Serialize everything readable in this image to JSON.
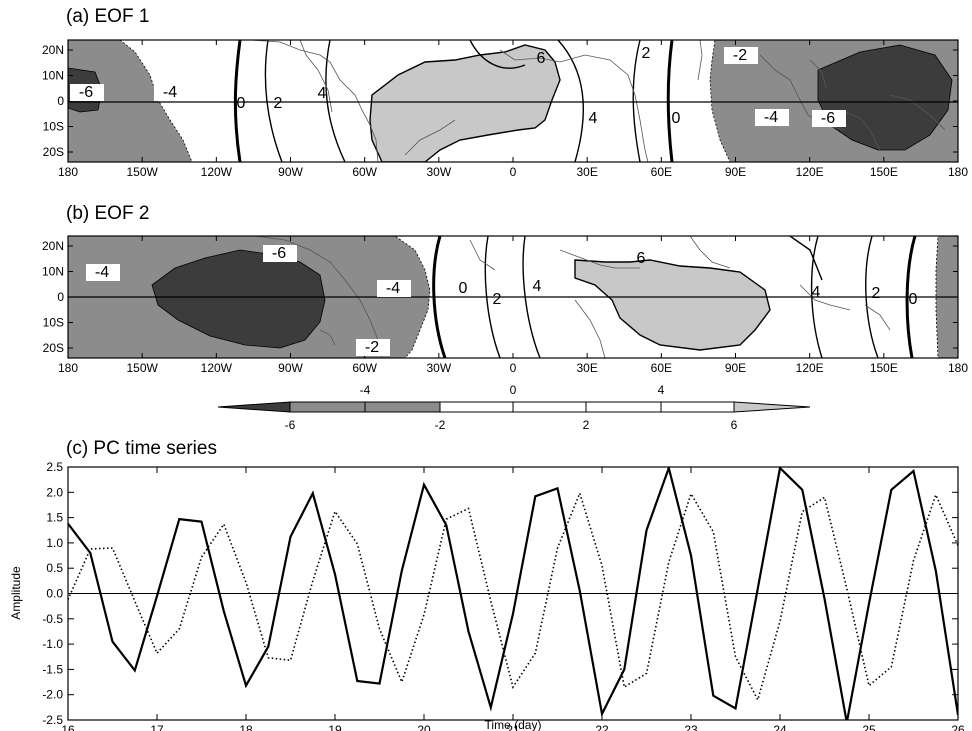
{
  "colors": {
    "pos_fill": "#c8c8c8",
    "neg_fill": "#8c8c8c",
    "neg_strong_fill": "#3c3c3c",
    "land_line": "#555555",
    "frame": "#000000"
  },
  "map_axes": {
    "lon_ticks": [
      "180",
      "150W",
      "120W",
      "90W",
      "60W",
      "30W",
      "0",
      "30E",
      "60E",
      "90E",
      "120E",
      "150E",
      "180"
    ],
    "lat_ticks": [
      "20N",
      "10N",
      "0",
      "10S",
      "20S"
    ]
  },
  "panels": [
    {
      "title": "(a) EOF 1",
      "contour_labels": [
        "-6",
        "-4",
        "0",
        "2",
        "4",
        "6",
        "4",
        "2",
        "0",
        "-2",
        "-4",
        "-6"
      ]
    },
    {
      "title": "(b) EOF 2",
      "contour_labels": [
        "-4",
        "-6",
        "-4",
        "-2",
        "0",
        "2",
        "4",
        "6",
        "4",
        "2",
        "0"
      ]
    }
  ],
  "colorbar": {
    "top_labels": [
      "-4",
      "0",
      "4"
    ],
    "bottom_labels": [
      "-6",
      "-2",
      "2",
      "6"
    ]
  },
  "chart_data": {
    "type": "line",
    "title": "(c) PC time series",
    "xlabel": "Time (day)",
    "ylabel": "Amplitude",
    "xlim": [
      16,
      26
    ],
    "ylim": [
      -2.5,
      2.5
    ],
    "x_ticks": [
      "16",
      "17",
      "18",
      "19",
      "20",
      "21",
      "22",
      "23",
      "24",
      "25",
      "26"
    ],
    "y_ticks": [
      "2.5",
      "2.0",
      "1.5",
      "1.0",
      "0.5",
      "0.0",
      "-0.5",
      "-1.0",
      "-1.5",
      "-2.0",
      "-2.5"
    ],
    "series": [
      {
        "style": "solid",
        "x": [
          16.0,
          16.25,
          16.5,
          16.75,
          17.0,
          17.25,
          17.5,
          17.75,
          18.0,
          18.25,
          18.5,
          18.75,
          19.0,
          19.25,
          19.5,
          19.75,
          20.0,
          20.25,
          20.5,
          20.75,
          21.0,
          21.25,
          21.5,
          21.75,
          22.0,
          22.25,
          22.5,
          22.75,
          23.0,
          23.25,
          23.5,
          23.75,
          24.0,
          24.25,
          24.5,
          24.75,
          25.0,
          25.25,
          25.5,
          25.75,
          26.0
        ],
        "y": [
          1.38,
          0.8,
          -0.95,
          -1.52,
          -0.05,
          1.47,
          1.42,
          -0.35,
          -1.82,
          -1.05,
          1.12,
          1.98,
          0.38,
          -1.73,
          -1.78,
          0.45,
          2.15,
          1.35,
          -0.75,
          -2.25,
          -0.4,
          1.92,
          2.08,
          0.05,
          -2.38,
          -1.5,
          1.25,
          2.48,
          0.75,
          -2.02,
          -2.27,
          0.1,
          2.48,
          2.05,
          -0.1,
          -2.55,
          -0.2,
          2.05,
          2.42,
          0.45,
          -2.4
        ]
      },
      {
        "style": "dotted",
        "x": [
          16.0,
          16.25,
          16.5,
          16.75,
          17.0,
          17.25,
          17.5,
          17.75,
          18.0,
          18.25,
          18.5,
          18.75,
          19.0,
          19.25,
          19.5,
          19.75,
          20.0,
          20.25,
          20.5,
          20.75,
          21.0,
          21.25,
          21.5,
          21.75,
          22.0,
          22.25,
          22.5,
          22.75,
          23.0,
          23.25,
          23.5,
          23.75,
          24.0,
          24.25,
          24.5,
          24.75,
          25.0,
          25.25,
          25.5,
          25.75,
          26.0
        ],
        "y": [
          -0.12,
          0.88,
          0.9,
          -0.15,
          -1.18,
          -0.7,
          0.72,
          1.37,
          0.22,
          -1.27,
          -1.32,
          0.25,
          1.62,
          0.98,
          -0.7,
          -1.75,
          -0.42,
          1.47,
          1.68,
          -0.15,
          -1.85,
          -1.18,
          0.9,
          1.98,
          0.55,
          -1.85,
          -1.58,
          0.62,
          1.97,
          1.22,
          -1.25,
          -2.1,
          -0.55,
          1.62,
          1.9,
          0.1,
          -1.82,
          -1.45,
          0.65,
          1.95,
          0.95
        ]
      }
    ]
  }
}
